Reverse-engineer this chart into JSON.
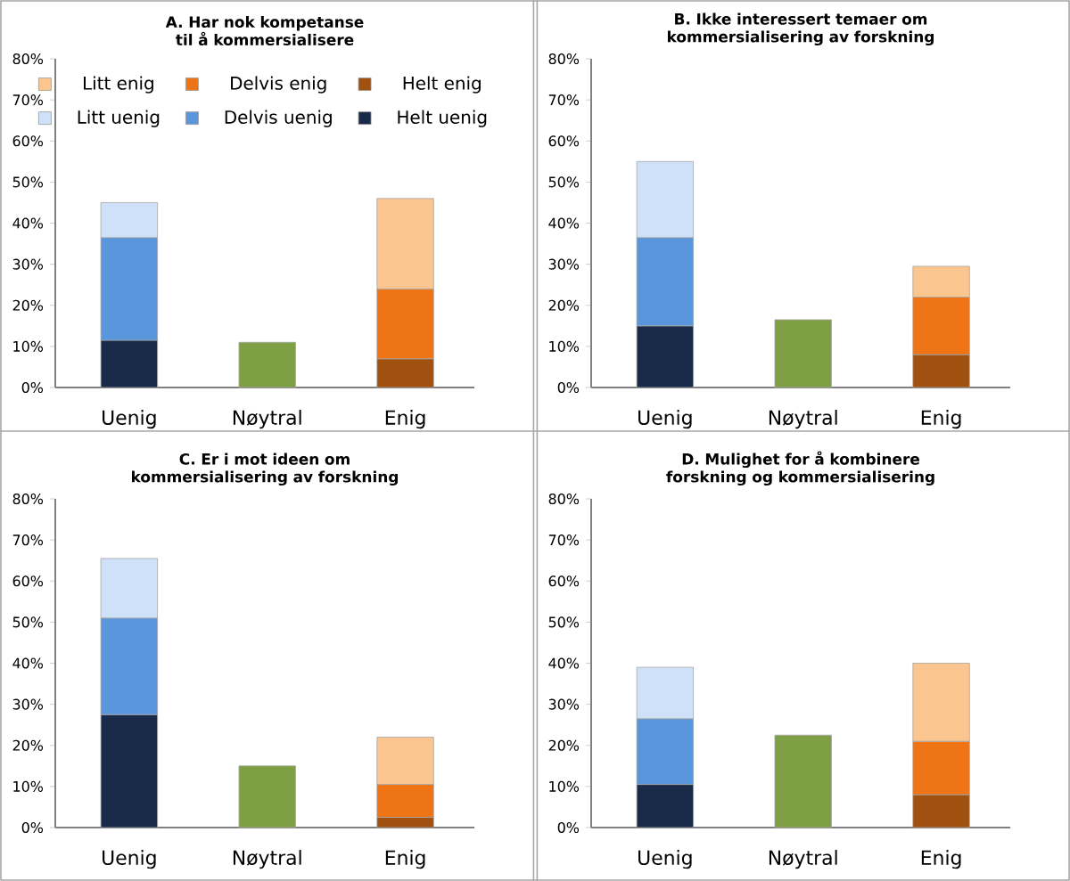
{
  "chart_data": [
    {
      "type": "bar",
      "title": "A. Har nok kompetanse til å kommersialisere",
      "categories": [
        "Uenig",
        "Nøytral",
        "Enig"
      ],
      "stacked": true,
      "legend": "top",
      "ylim": [
        0,
        80
      ],
      "yticks": [
        {
          "value": 0,
          "label": "0%"
        },
        {
          "value": 10,
          "label": "10%"
        },
        {
          "value": 20,
          "label": "20%"
        },
        {
          "value": 30,
          "label": "30%"
        },
        {
          "value": 40,
          "label": "40%"
        },
        {
          "value": 50,
          "label": "50%"
        },
        {
          "value": 60,
          "label": "60%"
        },
        {
          "value": 70,
          "label": "70%"
        },
        {
          "value": 80,
          "label": "80%"
        }
      ],
      "series": [
        {
          "name": "Helt uenig",
          "color": "#1a2b4a",
          "values": [
            11.5,
            null,
            null
          ]
        },
        {
          "name": "Delvis uenig",
          "color": "#5a96dc",
          "values": [
            25,
            null,
            null
          ]
        },
        {
          "name": "Litt uenig",
          "color": "#cfe1f8",
          "values": [
            8.5,
            null,
            null
          ]
        },
        {
          "color": "#7f9f45",
          "values": [
            null,
            11,
            null
          ]
        },
        {
          "name": "Helt enig",
          "color": "#a0500f",
          "values": [
            null,
            null,
            7
          ]
        },
        {
          "name": "Delvis enig",
          "color": "#ee7415",
          "values": [
            null,
            null,
            17
          ]
        },
        {
          "name": "Litt enig",
          "color": "#fbc58f",
          "values": [
            null,
            null,
            22
          ]
        }
      ]
    },
    {
      "type": "bar",
      "title": "B. Ikke interessert  temaer om kommersialisering av forskning",
      "categories": [
        "Uenig",
        "Nøytral",
        "Enig"
      ],
      "stacked": true,
      "ylim": [
        0,
        80
      ],
      "yticks": [
        {
          "value": 0,
          "label": "0%"
        },
        {
          "value": 10,
          "label": "10%"
        },
        {
          "value": 20,
          "label": "20%"
        },
        {
          "value": 30,
          "label": "30%"
        },
        {
          "value": 40,
          "label": "40%"
        },
        {
          "value": 50,
          "label": "50%"
        },
        {
          "value": 60,
          "label": "60%"
        },
        {
          "value": 70,
          "label": "70%"
        },
        {
          "value": 80,
          "label": "80%"
        }
      ],
      "series": [
        {
          "color": "#1a2b4a",
          "values": [
            15,
            null,
            null
          ]
        },
        {
          "color": "#5a96dc",
          "values": [
            21.5,
            null,
            null
          ]
        },
        {
          "color": "#cfe1f8",
          "values": [
            18.5,
            null,
            null
          ]
        },
        {
          "color": "#7f9f45",
          "values": [
            null,
            16.5,
            null
          ]
        },
        {
          "color": "#a0500f",
          "values": [
            null,
            null,
            8
          ]
        },
        {
          "color": "#ee7415",
          "values": [
            null,
            null,
            14
          ]
        },
        {
          "color": "#fbc58f",
          "values": [
            null,
            null,
            7.5
          ]
        }
      ]
    },
    {
      "type": "bar",
      "title": "C. Er i mot ideen om kommersialisering av forskning",
      "categories": [
        "Uenig",
        "Nøytral",
        "Enig"
      ],
      "stacked": true,
      "ylim": [
        0,
        80
      ],
      "yticks": [
        {
          "value": 0,
          "label": "0%"
        },
        {
          "value": 10,
          "label": "10%"
        },
        {
          "value": 20,
          "label": "20%"
        },
        {
          "value": 30,
          "label": "30%"
        },
        {
          "value": 40,
          "label": "40%"
        },
        {
          "value": 50,
          "label": "50%"
        },
        {
          "value": 60,
          "label": "60%"
        },
        {
          "value": 70,
          "label": "70%"
        },
        {
          "value": 80,
          "label": "80%"
        }
      ],
      "series": [
        {
          "color": "#1a2b4a",
          "values": [
            27.5,
            null,
            null
          ]
        },
        {
          "color": "#5a96dc",
          "values": [
            23.5,
            null,
            null
          ]
        },
        {
          "color": "#cfe1f8",
          "values": [
            14.5,
            null,
            null
          ]
        },
        {
          "color": "#7f9f45",
          "values": [
            null,
            15,
            null
          ]
        },
        {
          "color": "#a0500f",
          "values": [
            null,
            null,
            2.5
          ]
        },
        {
          "color": "#ee7415",
          "values": [
            null,
            null,
            8
          ]
        },
        {
          "color": "#fbc58f",
          "values": [
            null,
            null,
            11.5
          ]
        }
      ]
    },
    {
      "type": "bar",
      "title": "D. Mulighet for å kombinere forskning og kommersialisering",
      "categories": [
        "Uenig",
        "Nøytral",
        "Enig"
      ],
      "stacked": true,
      "ylim": [
        0,
        80
      ],
      "yticks": [
        {
          "value": 0,
          "label": "0%"
        },
        {
          "value": 10,
          "label": "10%"
        },
        {
          "value": 20,
          "label": "20%"
        },
        {
          "value": 30,
          "label": "30%"
        },
        {
          "value": 40,
          "label": "40%"
        },
        {
          "value": 50,
          "label": "50%"
        },
        {
          "value": 60,
          "label": "60%"
        },
        {
          "value": 70,
          "label": "70%"
        },
        {
          "value": 80,
          "label": "80%"
        }
      ],
      "series": [
        {
          "color": "#1a2b4a",
          "values": [
            10.5,
            null,
            null
          ]
        },
        {
          "color": "#5a96dc",
          "values": [
            16,
            null,
            null
          ]
        },
        {
          "color": "#cfe1f8",
          "values": [
            12.5,
            null,
            null
          ]
        },
        {
          "color": "#7f9f45",
          "values": [
            null,
            22.5,
            null
          ]
        },
        {
          "color": "#a0500f",
          "values": [
            null,
            null,
            8
          ]
        },
        {
          "color": "#ee7415",
          "values": [
            null,
            null,
            13
          ]
        },
        {
          "color": "#fbc58f",
          "values": [
            null,
            null,
            19
          ]
        }
      ]
    }
  ]
}
